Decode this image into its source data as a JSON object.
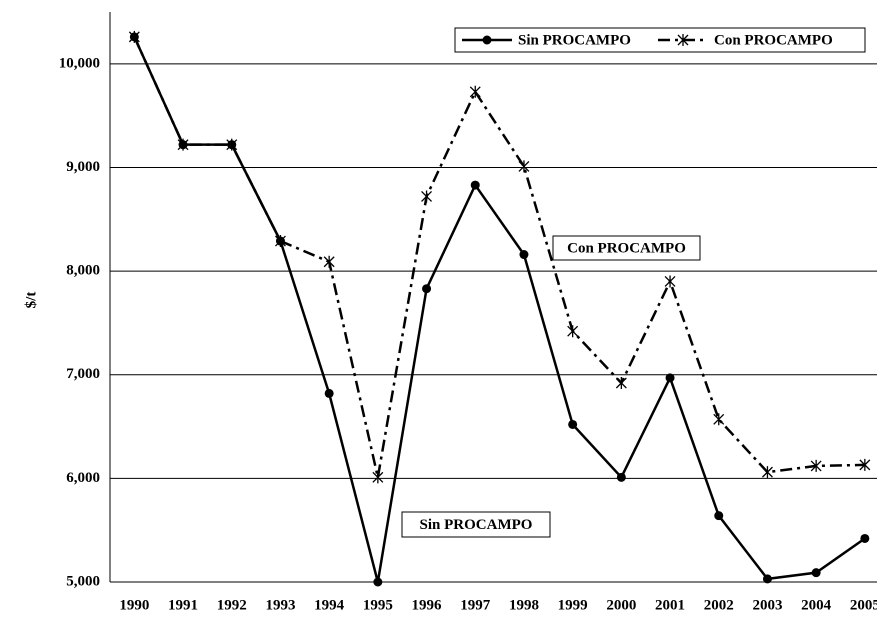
{
  "chart_data": {
    "type": "line",
    "y_label": "$/t",
    "categories": [
      "1990",
      "1991",
      "1992",
      "1993",
      "1994",
      "1995",
      "1996",
      "1997",
      "1998",
      "1999",
      "2000",
      "2001",
      "2002",
      "2003",
      "2004",
      "2005"
    ],
    "series": [
      {
        "name": "Sin PROCAMPO",
        "color": "#000000",
        "style": "solid",
        "marker": "circle",
        "values": [
          10260,
          9220,
          9220,
          8290,
          6820,
          5000,
          7830,
          8830,
          8160,
          6520,
          6010,
          6970,
          5640,
          5030,
          5090,
          5420
        ]
      },
      {
        "name": "Con PROCAMPO",
        "color": "#000000",
        "style": "dashdot",
        "marker": "star",
        "values": [
          10260,
          9220,
          9220,
          8290,
          8090,
          6010,
          8720,
          9730,
          9010,
          7420,
          6920,
          7900,
          6570,
          6060,
          6120,
          6130
        ]
      }
    ],
    "ylim": [
      5000,
      10500
    ],
    "yticks": [
      {
        "value": 5000,
        "label": "5,000"
      },
      {
        "value": 6000,
        "label": "6,000"
      },
      {
        "value": 7000,
        "label": "7,000"
      },
      {
        "value": 8000,
        "label": "8,000"
      },
      {
        "value": 9000,
        "label": "9,000"
      },
      {
        "value": 10000,
        "label": "10,000"
      }
    ],
    "grid": true,
    "legend": "top-right",
    "annotations": [
      "Con PROCAMPO",
      "Sin PROCAMPO"
    ]
  }
}
